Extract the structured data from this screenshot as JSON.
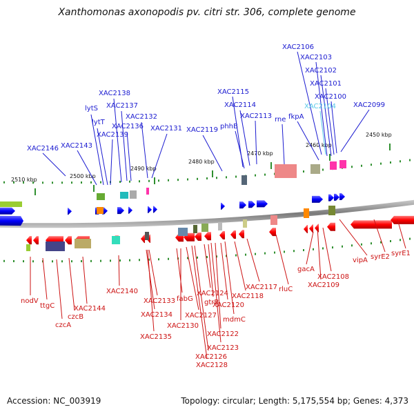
{
  "title": "Xanthomonas axonopodis pv. citri str. 306, complete genome",
  "footer": {
    "accession": "Accession: NC_003919",
    "summary": "Topology: circular; Length: 5,175,554 bp; Genes: 4,373"
  },
  "scale_labels": [
    "2510 kbp",
    "2500 kbp",
    "2490 kbp",
    "2480 kbp",
    "2470 kbp",
    "2460 kbp",
    "2450 kbp"
  ],
  "top_labels": [
    "XAC2146",
    "XAC2143",
    "lytS",
    "lytT",
    "XAC2139",
    "XAC2138",
    "XAC2137",
    "XAC2136",
    "XAC2132",
    "XAC2131",
    "XAC2119",
    "phhB",
    "XAC2115",
    "XAC2114",
    "XAC2113",
    "rne",
    "fkpA",
    "XAC2106",
    "XAC2103",
    "XAC2102",
    "XAC2101",
    "XAC2104",
    "XAC2100",
    "XAC2099"
  ],
  "bottom_labels": [
    "nodV",
    "ttgC",
    "czcA",
    "czcB",
    "XAC2144",
    "XAC2140",
    "XAC2133",
    "XAC2134",
    "XAC2135",
    "fabG",
    "XAC2130",
    "XAC2127",
    "XAC2128",
    "XAC2126",
    "XAC2124",
    "gtrB",
    "XAC2123",
    "XAC2122",
    "XAC2120",
    "mdmC",
    "XAC2118",
    "XAC2117",
    "rluC",
    "gacA",
    "XAC2109",
    "XAC2108",
    "vipA",
    "syrE2",
    "syrE1"
  ],
  "colors": {
    "forward_label": "#1a1ad0",
    "reverse_label": "#cc1111",
    "highlight_label": "#55c8e8",
    "forward_gene": "#0000ff",
    "reverse_gene": "#ff0000",
    "backbone": "#8a8a8a",
    "tick": "#2f8f2f"
  }
}
